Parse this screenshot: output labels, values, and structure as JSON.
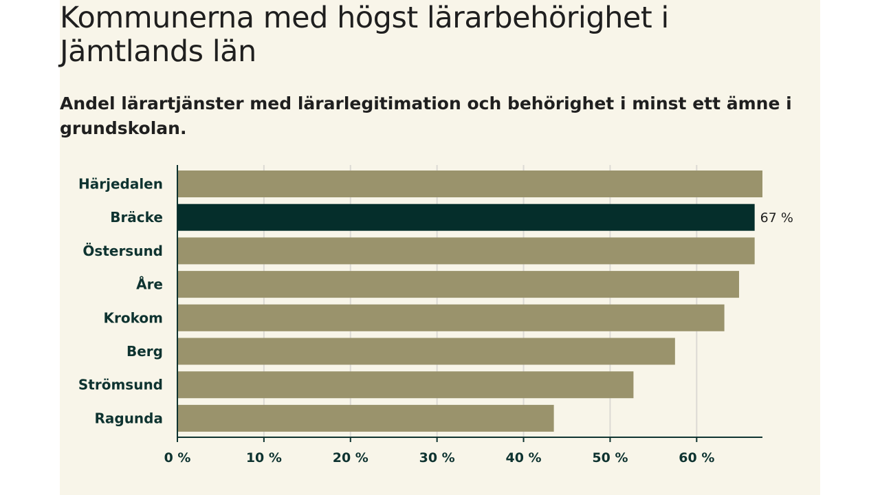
{
  "colors": {
    "background": "#f8f5e9",
    "bar": "#9a936c",
    "highlight": "#052e2b",
    "label": "#0e3330",
    "grid": "#dcdad4",
    "axis": "#0e3330",
    "text": "#1f1f1f"
  },
  "chart_data": {
    "type": "bar",
    "orientation": "horizontal",
    "title": "Kommunerna med högst lärarbehörighet i Jämtlands län",
    "subtitle": "Andel lärartjänster med lärarlegitimation och behörighet i minst ett ämne i grundskolan.",
    "categories": [
      "Härjedalen",
      "Bräcke",
      "Östersund",
      "Åre",
      "Krokom",
      "Berg",
      "Strömsund",
      "Ragunda"
    ],
    "values": [
      67.6,
      66.7,
      66.7,
      64.9,
      63.2,
      57.5,
      52.7,
      43.5
    ],
    "highlight_index": 1,
    "data_labels": [
      "",
      "67 %",
      "",
      "",
      "",
      "",
      "",
      ""
    ],
    "x_ticks": [
      0,
      10,
      20,
      30,
      40,
      50,
      60
    ],
    "x_tick_labels": [
      "0 %",
      "10 %",
      "20 %",
      "30 %",
      "40 %",
      "50 %",
      "60 %"
    ],
    "xlim": [
      0,
      67.6
    ],
    "grid": true
  }
}
